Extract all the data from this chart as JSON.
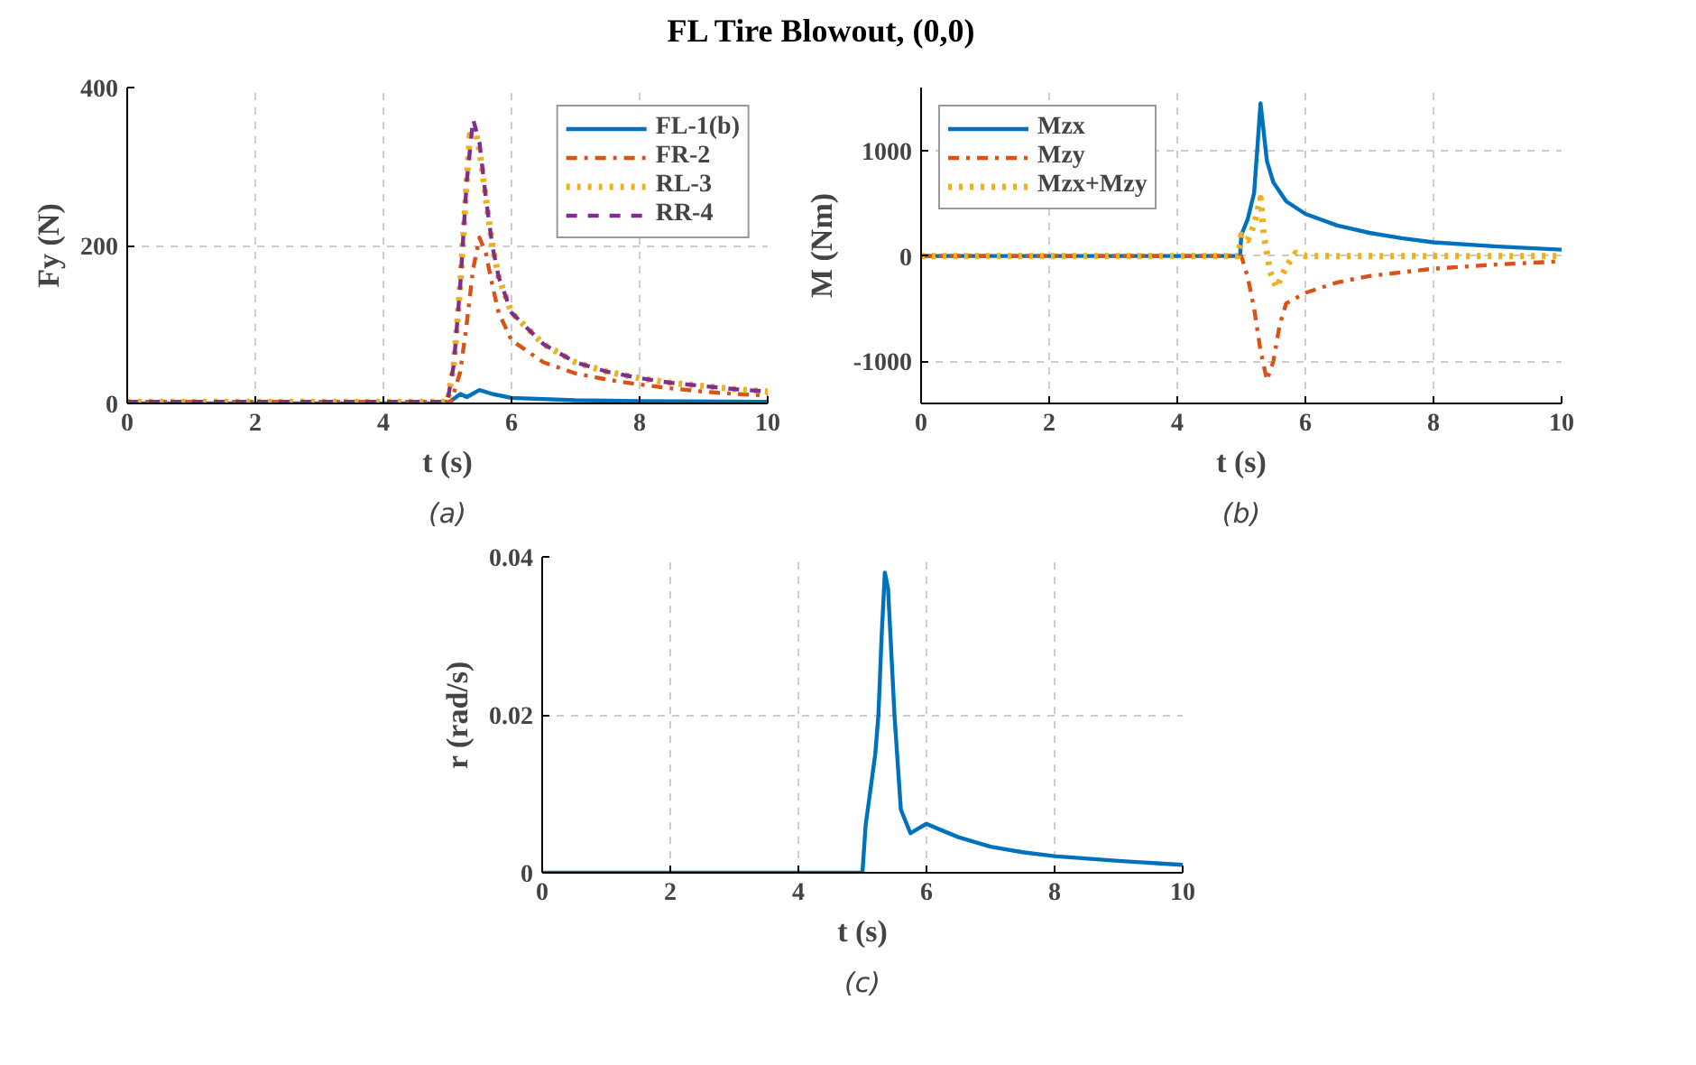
{
  "chart_data": [
    {
      "type": "line",
      "title": "FL Tire Blowout, (0,0)",
      "xlabel": "t (s)",
      "ylabel": "Fy (N)",
      "annotations": [
        "(a)"
      ],
      "xlim": [
        0,
        10
      ],
      "xticks": [
        0,
        2,
        4,
        6,
        8,
        10
      ],
      "ylim": [
        0,
        400
      ],
      "yticks": [
        0,
        200,
        400
      ],
      "grid": true,
      "legend": "top right",
      "series": [
        {
          "name": "FL-1(b)",
          "color": "#0072bd",
          "line_style": "solid",
          "x": [
            0,
            5.0,
            5.2,
            5.3,
            5.5,
            5.7,
            6.0,
            7.0,
            8.0,
            10
          ],
          "values": [
            0,
            0,
            12,
            8,
            17,
            12,
            7,
            4,
            3,
            2
          ]
        },
        {
          "name": "FR-2",
          "color": "#d95319",
          "line_style": "dashdot",
          "x": [
            0,
            5.0,
            5.05,
            5.2,
            5.3,
            5.4,
            5.5,
            5.6,
            5.7,
            5.8,
            6.0,
            6.5,
            7.0,
            7.5,
            8.0,
            8.5,
            9.0,
            9.5,
            10
          ],
          "values": [
            2,
            2,
            0,
            40,
            100,
            170,
            210,
            190,
            150,
            115,
            80,
            52,
            38,
            30,
            24,
            19,
            15,
            12,
            10
          ]
        },
        {
          "name": "RL-3",
          "color": "#edb120",
          "line_style": "dotted",
          "x": [
            0,
            5.0,
            5.1,
            5.2,
            5.3,
            5.35,
            5.45,
            5.5,
            5.6,
            5.7,
            5.8,
            6.0,
            6.5,
            7.0,
            7.5,
            8.0,
            8.5,
            9.0,
            9.5,
            10
          ],
          "values": [
            2,
            2,
            50,
            150,
            280,
            340,
            340,
            320,
            260,
            200,
            160,
            115,
            75,
            52,
            40,
            32,
            26,
            22,
            18,
            15
          ]
        },
        {
          "name": "RR-4",
          "color": "#7e2f8e",
          "line_style": "dashed",
          "x": [
            0,
            5.0,
            5.1,
            5.2,
            5.3,
            5.4,
            5.5,
            5.6,
            5.7,
            5.8,
            6.0,
            6.5,
            7.0,
            7.5,
            8.0,
            8.5,
            9.0,
            9.5,
            10
          ],
          "values": [
            2,
            2,
            50,
            150,
            280,
            360,
            330,
            260,
            200,
            160,
            115,
            75,
            52,
            40,
            32,
            26,
            22,
            18,
            15
          ]
        }
      ]
    },
    {
      "type": "line",
      "xlabel": "t (s)",
      "ylabel": "M (Nm)",
      "annotations": [
        "(b)"
      ],
      "xlim": [
        0,
        10
      ],
      "xticks": [
        0,
        2,
        4,
        6,
        8,
        10
      ],
      "ylim": [
        -1400,
        1600
      ],
      "yticks": [
        -1000,
        0,
        1000
      ],
      "grid": true,
      "legend": "top left",
      "series": [
        {
          "name": "Mzx",
          "color": "#0072bd",
          "line_style": "solid",
          "x": [
            0,
            4.98,
            5.0,
            5.1,
            5.2,
            5.3,
            5.4,
            5.5,
            5.7,
            6.0,
            6.5,
            7.0,
            7.5,
            8.0,
            9.0,
            10
          ],
          "values": [
            0,
            0,
            200,
            350,
            600,
            1450,
            900,
            700,
            520,
            400,
            290,
            220,
            170,
            130,
            90,
            60
          ]
        },
        {
          "name": "Mzy",
          "color": "#d95319",
          "line_style": "dashdot",
          "x": [
            0,
            5.0,
            5.1,
            5.2,
            5.3,
            5.4,
            5.5,
            5.6,
            5.7,
            6.0,
            6.5,
            7.0,
            8.0,
            9.0,
            10
          ],
          "values": [
            0,
            0,
            -200,
            -500,
            -900,
            -1180,
            -1000,
            -650,
            -450,
            -350,
            -250,
            -190,
            -120,
            -80,
            -50
          ]
        },
        {
          "name": "Mzx+Mzy",
          "color": "#edb120",
          "line_style": "dotted",
          "x": [
            0,
            4.95,
            5.0,
            5.1,
            5.2,
            5.3,
            5.35,
            5.45,
            5.55,
            5.7,
            5.85,
            6.0,
            10
          ],
          "values": [
            0,
            0,
            200,
            150,
            300,
            550,
            200,
            -150,
            -300,
            -100,
            30,
            0,
            0
          ]
        }
      ]
    },
    {
      "type": "line",
      "xlabel": "t (s)",
      "ylabel": "r (rad/s)",
      "annotations": [
        "(c)"
      ],
      "xlim": [
        0,
        10
      ],
      "xticks": [
        0,
        2,
        4,
        6,
        8,
        10
      ],
      "ylim": [
        0,
        0.04
      ],
      "yticks": [
        0,
        0.02,
        0.04
      ],
      "grid": true,
      "series": [
        {
          "color": "#0072bd",
          "line_style": "solid",
          "x": [
            0,
            5.0,
            5.05,
            5.2,
            5.25,
            5.3,
            5.35,
            5.4,
            5.5,
            5.6,
            5.75,
            5.85,
            6.0,
            6.2,
            6.5,
            7.0,
            7.5,
            8.0,
            9.0,
            10
          ],
          "values": [
            0,
            0,
            0.006,
            0.015,
            0.02,
            0.03,
            0.038,
            0.036,
            0.02,
            0.008,
            0.005,
            0.0055,
            0.0062,
            0.0055,
            0.0045,
            0.0033,
            0.0026,
            0.0021,
            0.0015,
            0.001
          ]
        }
      ]
    }
  ]
}
